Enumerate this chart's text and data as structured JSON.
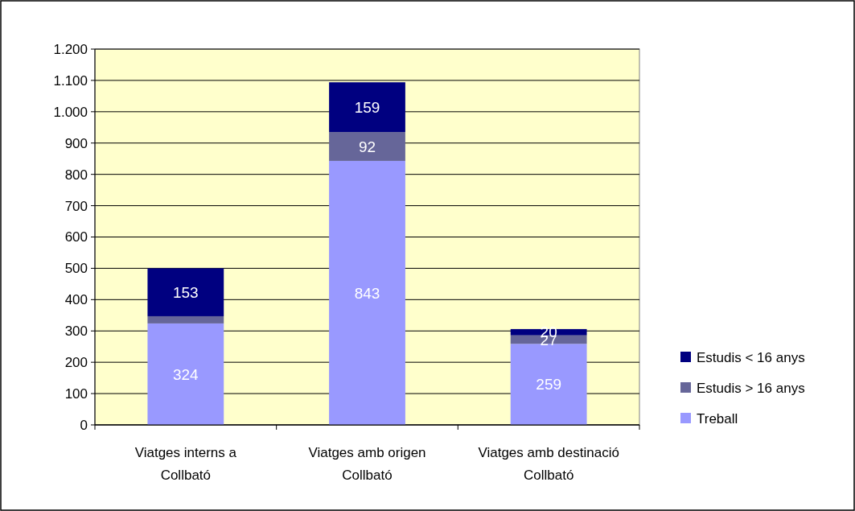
{
  "chart_data": {
    "type": "bar",
    "stacked": true,
    "categories": [
      "Viatges interns a Collbató",
      "Viatges amb origen Collbató",
      "Viatges amb destinació Collbató"
    ],
    "series": [
      {
        "name": "Treball",
        "color": "#9999ff",
        "values": [
          324,
          843,
          259
        ],
        "value_labels": [
          "324",
          "843",
          "259"
        ]
      },
      {
        "name": "Estudis > 16 anys",
        "color": "#666699",
        "values": [
          23,
          92,
          27
        ],
        "value_labels": [
          null,
          "92",
          "27"
        ]
      },
      {
        "name": "Estudis < 16 anys",
        "color": "#000080",
        "values": [
          153,
          159,
          20
        ],
        "value_labels": [
          "153",
          "159",
          "20"
        ]
      }
    ],
    "ylim": [
      0,
      1200
    ],
    "yticks": [
      0,
      {
        "value": 100,
        "label": "100"
      },
      200,
      300,
      400,
      500,
      600,
      700,
      800,
      900,
      {
        "value": 1000,
        "label": "1.000"
      },
      {
        "value": 1100,
        "label": "1.100"
      },
      {
        "value": 1200,
        "label": "1.200"
      }
    ],
    "grid": "y",
    "legend": "right"
  }
}
